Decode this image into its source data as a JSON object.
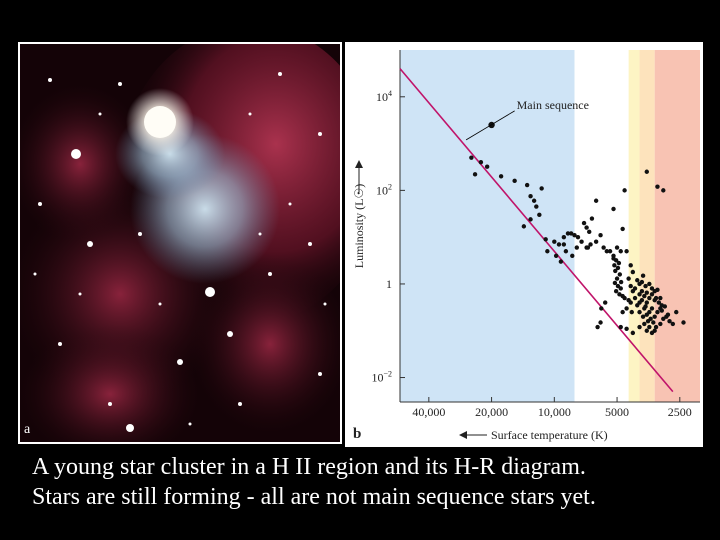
{
  "photo": {
    "panel_label": "a"
  },
  "caption": {
    "line1": "A young star cluster in a H II region and its H-R diagram.",
    "line2": "Stars are still forming - all are not main sequence stars yet."
  },
  "chart_data": {
    "type": "scatter",
    "panel_label": "b",
    "xlabel": "Surface temperature (K)",
    "ylabel": "Luminosity (L☉)",
    "x_scale": "log-reversed",
    "y_scale": "log",
    "xlim": [
      55000,
      2000
    ],
    "ylim": [
      0.003,
      100000
    ],
    "x_ticks": [
      {
        "value": 40000,
        "label": "40,000"
      },
      {
        "value": 20000,
        "label": "20,000"
      },
      {
        "value": 10000,
        "label": "10,000"
      },
      {
        "value": 5000,
        "label": "5000"
      },
      {
        "value": 2500,
        "label": "2500"
      }
    ],
    "y_ticks": [
      {
        "value": 10000,
        "base": "10",
        "exp": "4"
      },
      {
        "value": 100,
        "base": "10",
        "exp": "2"
      },
      {
        "value": 1,
        "base": "1",
        "exp": ""
      },
      {
        "value": 0.01,
        "base": "10",
        "exp": "−2"
      }
    ],
    "annotation": "Main sequence",
    "main_sequence_line": [
      [
        55000,
        40000
      ],
      [
        2700,
        0.005
      ]
    ],
    "color_bands": [
      {
        "from": 55000,
        "to": 8000,
        "color": "#cfe4f6"
      },
      {
        "from": 8000,
        "to": 4400,
        "color": "#ffffff"
      },
      {
        "from": 4400,
        "to": 3900,
        "color": "#fdf4c4"
      },
      {
        "from": 3900,
        "to": 3300,
        "color": "#fde3bc"
      },
      {
        "from": 3300,
        "to": 2000,
        "color": "#f8c3b3"
      }
    ],
    "points": [
      [
        20000,
        2500
      ],
      [
        25000,
        500
      ],
      [
        22500,
        400
      ],
      [
        21000,
        320
      ],
      [
        24000,
        220
      ],
      [
        18000,
        200
      ],
      [
        15500,
        160
      ],
      [
        13500,
        130
      ],
      [
        11500,
        110
      ],
      [
        13000,
        75
      ],
      [
        12500,
        60
      ],
      [
        12200,
        45
      ],
      [
        11800,
        30
      ],
      [
        13000,
        24
      ],
      [
        14000,
        17
      ],
      [
        11000,
        9
      ],
      [
        9500,
        7
      ],
      [
        9000,
        10
      ],
      [
        8600,
        12
      ],
      [
        8300,
        12
      ],
      [
        8000,
        11
      ],
      [
        7700,
        10
      ],
      [
        7400,
        8
      ],
      [
        7000,
        6
      ],
      [
        6700,
        7
      ],
      [
        6300,
        8
      ],
      [
        6000,
        11
      ],
      [
        5800,
        6
      ],
      [
        5600,
        5
      ],
      [
        5400,
        5
      ],
      [
        5200,
        4
      ],
      [
        5000,
        6
      ],
      [
        4800,
        5
      ],
      [
        7200,
        20
      ],
      [
        7000,
        16
      ],
      [
        6800,
        13
      ],
      [
        6600,
        25
      ],
      [
        6300,
        60
      ],
      [
        5200,
        40
      ],
      [
        4600,
        100
      ],
      [
        3600,
        250
      ],
      [
        3200,
        120
      ],
      [
        3000,
        100
      ],
      [
        4700,
        15
      ],
      [
        10000,
        8
      ],
      [
        10800,
        5
      ],
      [
        9800,
        4
      ],
      [
        9300,
        3
      ],
      [
        8800,
        5
      ],
      [
        8200,
        4
      ],
      [
        7800,
        6
      ],
      [
        9000,
        7
      ],
      [
        6900,
        6
      ],
      [
        5200,
        3.5
      ],
      [
        5050,
        3.2
      ],
      [
        5150,
        2.5
      ],
      [
        4900,
        2.8
      ],
      [
        4950,
        2.2
      ],
      [
        5100,
        1.9
      ],
      [
        4850,
        1.6
      ],
      [
        5000,
        1.3
      ],
      [
        4780,
        1.1
      ],
      [
        5120,
        1.05
      ],
      [
        4950,
        0.9
      ],
      [
        4800,
        0.8
      ],
      [
        5050,
        0.7
      ],
      [
        4870,
        0.6
      ],
      [
        4700,
        0.55
      ],
      [
        4600,
        0.5
      ],
      [
        4400,
        0.45
      ],
      [
        4300,
        0.4
      ],
      [
        4100,
        0.5
      ],
      [
        4000,
        0.35
      ],
      [
        3800,
        0.45
      ],
      [
        3700,
        0.3
      ],
      [
        3600,
        0.4
      ],
      [
        3500,
        0.25
      ],
      [
        3400,
        0.3
      ],
      [
        3300,
        0.2
      ],
      [
        3200,
        0.25
      ],
      [
        3100,
        0.3
      ],
      [
        3000,
        0.18
      ],
      [
        2900,
        0.2
      ],
      [
        2800,
        0.16
      ],
      [
        2700,
        0.14
      ],
      [
        4300,
        0.9
      ],
      [
        4200,
        0.7
      ],
      [
        4100,
        0.8
      ],
      [
        3900,
        0.6
      ],
      [
        3800,
        0.7
      ],
      [
        3700,
        0.55
      ],
      [
        3600,
        0.65
      ],
      [
        3500,
        0.5
      ],
      [
        3400,
        0.6
      ],
      [
        3300,
        0.45
      ],
      [
        3250,
        0.5
      ],
      [
        3150,
        0.4
      ],
      [
        3100,
        0.5
      ],
      [
        3050,
        0.35
      ],
      [
        4000,
        1.2
      ],
      [
        3900,
        1.0
      ],
      [
        3800,
        1.1
      ],
      [
        3650,
        0.9
      ],
      [
        3500,
        1.0
      ],
      [
        3400,
        0.8
      ],
      [
        3300,
        0.7
      ],
      [
        3200,
        0.75
      ],
      [
        3900,
        0.25
      ],
      [
        3750,
        0.2
      ],
      [
        3600,
        0.22
      ],
      [
        3450,
        0.18
      ],
      [
        3350,
        0.15
      ],
      [
        3250,
        0.12
      ],
      [
        3600,
        0.1
      ],
      [
        3500,
        0.12
      ],
      [
        3400,
        0.09
      ],
      [
        3300,
        0.1
      ],
      [
        3700,
        0.14
      ],
      [
        3550,
        0.16
      ],
      [
        4500,
        0.3
      ],
      [
        4250,
        0.25
      ],
      [
        3900,
        0.4
      ],
      [
        3650,
        0.33
      ],
      [
        3050,
        0.27
      ],
      [
        2950,
        0.33
      ],
      [
        2850,
        0.22
      ],
      [
        2600,
        0.25
      ],
      [
        2400,
        0.15
      ],
      [
        3100,
        0.14
      ],
      [
        4500,
        5
      ],
      [
        4300,
        2.5
      ],
      [
        4200,
        1.8
      ],
      [
        4400,
        1.3
      ],
      [
        3750,
        1.5
      ],
      [
        4700,
        0.25
      ],
      [
        4800,
        0.12
      ],
      [
        6200,
        0.12
      ],
      [
        6000,
        0.15
      ],
      [
        5950,
        0.3
      ],
      [
        5700,
        0.4
      ],
      [
        4500,
        0.11
      ],
      [
        4200,
        0.09
      ],
      [
        3900,
        0.12
      ]
    ]
  }
}
